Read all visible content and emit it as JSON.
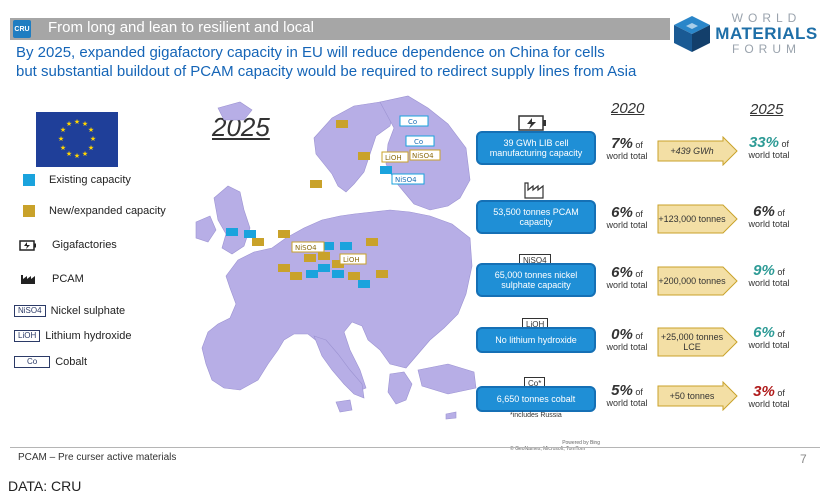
{
  "header": {
    "logo_text": "CRU",
    "title": "From long and lean to resilient and local",
    "brand_lines": [
      "WORLD",
      "MATERIALS",
      "FORUM"
    ]
  },
  "headline": {
    "line1": "By 2025, expanded gigafactory capacity in EU will reduce dependence on China for cells",
    "line2": "but substantial buildout of PCAM capacity would be required to redirect supply lines from Asia"
  },
  "map": {
    "year": "2025",
    "labels": [
      "Co",
      "Co",
      "LiOH",
      "NiSO4",
      "NiSO4",
      "NiSO4",
      "LiOH"
    ]
  },
  "legend": {
    "existing": "Existing capacity",
    "new": "New/expanded capacity",
    "gigafactories": "Gigafactories",
    "pcam": "PCAM",
    "nickel_tag": "NiSO4",
    "nickel": "Nickel sulphate",
    "lithium_tag": "LiOH",
    "lithium": "Lithium hydroxide",
    "cobalt_tag": "Co",
    "cobalt": "Cobalt"
  },
  "table": {
    "year_2020": "2020",
    "year_2025": "2025",
    "rows": [
      {
        "tag": "",
        "label": "39 GWh LIB cell manufacturing capacity",
        "pct2020": "7%",
        "growth": "+439 GWh",
        "pct2025": "33%",
        "color2025": "#2e9b96"
      },
      {
        "tag": "",
        "label": "53,500 tonnes PCAM capacity",
        "pct2020": "6%",
        "growth": "+123,000 tonnes",
        "pct2025": "6%",
        "color2025": "#333333"
      },
      {
        "tag": "NiSO4",
        "label": "65,000 tonnes nickel sulphate capacity",
        "pct2020": "6%",
        "growth": "+200,000 tonnes",
        "pct2025": "9%",
        "color2025": "#2e9b96"
      },
      {
        "tag": "LiOH",
        "label": "No lithium hydroxide",
        "pct2020": "0%",
        "growth": "+25,000 tonnes LCE",
        "pct2025": "6%",
        "color2025": "#2e9b96"
      },
      {
        "tag": "Co*",
        "label": "6,650 tonnes cobalt",
        "pct2020": "5%",
        "growth": "+50 tonnes",
        "pct2025": "3%",
        "color2025": "#b01c1c"
      }
    ],
    "of_text": "of",
    "world_total": "world total",
    "footnote": "*includes Russia"
  },
  "attribution": {
    "line1": "Powered by Bing",
    "line2": "© GeoNames, Microsoft, TomTom"
  },
  "footer": {
    "note": "PCAM – Pre curser active materials",
    "page": "7",
    "source": "DATA: CRU"
  }
}
